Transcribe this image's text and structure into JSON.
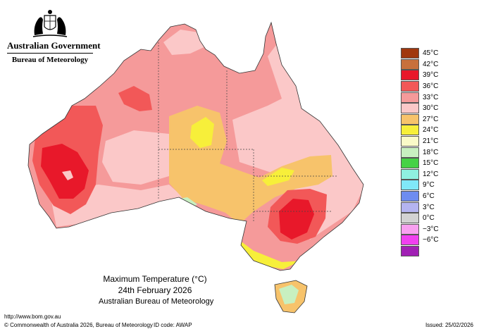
{
  "branding": {
    "government": "Australian Government",
    "bureau": "Bureau of Meteorology",
    "crest_icon": "coat-of-arms-icon"
  },
  "map": {
    "title": "Maximum Temperature (°C)",
    "date": "24th February 2026",
    "source": "Australian Bureau of Meteorology"
  },
  "legend": [
    {
      "label": "45°C",
      "color": "#a0380e"
    },
    {
      "label": "42°C",
      "color": "#c8703c"
    },
    {
      "label": "39°C",
      "color": "#e8182a"
    },
    {
      "label": "36°C",
      "color": "#f25858"
    },
    {
      "label": "33°C",
      "color": "#f59a9a"
    },
    {
      "label": "30°C",
      "color": "#fbc8c8"
    },
    {
      "label": "27°C",
      "color": "#f7c36b"
    },
    {
      "label": "24°C",
      "color": "#f7ef3a"
    },
    {
      "label": "21°C",
      "color": "#fafac8"
    },
    {
      "label": "18°C",
      "color": "#c8f0c0"
    },
    {
      "label": "15°C",
      "color": "#46d246"
    },
    {
      "label": "12°C",
      "color": "#8ff0e0"
    },
    {
      "label": "9°C",
      "color": "#80e8f8"
    },
    {
      "label": "6°C",
      "color": "#6e8cf0"
    },
    {
      "label": "3°C",
      "color": "#b4b4f0"
    },
    {
      "label": "0°C",
      "color": "#d2d2d2"
    },
    {
      "label": "−3°C",
      "color": "#f8a0f0"
    },
    {
      "label": "−6°C",
      "color": "#f040f0"
    },
    {
      "label": "",
      "color": "#a020b4"
    }
  ],
  "footer": {
    "url": "http://www.bom.gov.au",
    "copyright": "© Commonwealth of Australia 2026, Bureau of Meteorology",
    "id_code": "ID code: AWAP",
    "issued": "Issued: 25/02/2026"
  }
}
